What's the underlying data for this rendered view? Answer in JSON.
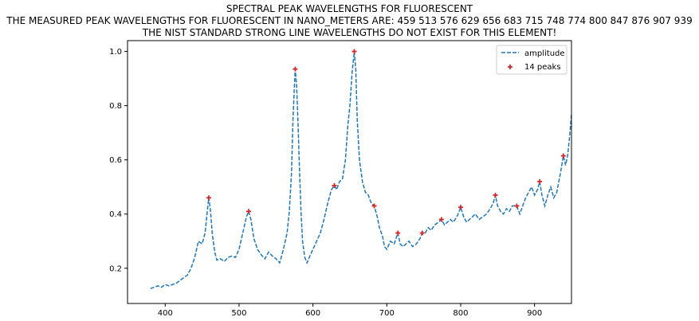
{
  "title_lines": [
    "SPECTRAL PEAK WAVELENGTHS FOR FLUORESCENT",
    "THE MEASURED PEAK WAVELENGTHS FOR FLUORESCENT IN NANO_METERS ARE: 459 513 576 629 656 683 715 748 774 800 847 876 907 939",
    "THE NIST STANDARD STRONG LINE WAVELENGTHS DO NOT EXIST FOR THIS ELEMENT!"
  ],
  "chart_data": {
    "type": "line",
    "title": "SPECTRAL PEAK WAVELENGTHS FOR FLUORESCENT",
    "xlabel": "",
    "ylabel": "",
    "xlim": [
      349,
      950
    ],
    "ylim": [
      0.07,
      1.04
    ],
    "xticks": [
      400,
      500,
      600,
      700,
      800,
      900
    ],
    "yticks": [
      0.2,
      0.4,
      0.6,
      0.8,
      1.0
    ],
    "grid": false,
    "legend_position": "top-right",
    "series": [
      {
        "name": "amplitude",
        "style": "dashed-line",
        "color": "#1f77b4",
        "points": [
          [
            380,
            0.125
          ],
          [
            385,
            0.13
          ],
          [
            390,
            0.135
          ],
          [
            395,
            0.13
          ],
          [
            400,
            0.14
          ],
          [
            405,
            0.135
          ],
          [
            410,
            0.14
          ],
          [
            415,
            0.145
          ],
          [
            420,
            0.155
          ],
          [
            425,
            0.165
          ],
          [
            430,
            0.175
          ],
          [
            435,
            0.2
          ],
          [
            440,
            0.24
          ],
          [
            445,
            0.3
          ],
          [
            450,
            0.29
          ],
          [
            454,
            0.33
          ],
          [
            457,
            0.41
          ],
          [
            459,
            0.46
          ],
          [
            461,
            0.42
          ],
          [
            464,
            0.32
          ],
          [
            467,
            0.26
          ],
          [
            470,
            0.23
          ],
          [
            475,
            0.235
          ],
          [
            480,
            0.225
          ],
          [
            485,
            0.24
          ],
          [
            490,
            0.245
          ],
          [
            495,
            0.24
          ],
          [
            500,
            0.27
          ],
          [
            505,
            0.33
          ],
          [
            510,
            0.39
          ],
          [
            513,
            0.41
          ],
          [
            516,
            0.38
          ],
          [
            520,
            0.31
          ],
          [
            525,
            0.27
          ],
          [
            530,
            0.25
          ],
          [
            535,
            0.235
          ],
          [
            540,
            0.26
          ],
          [
            545,
            0.245
          ],
          [
            550,
            0.235
          ],
          [
            555,
            0.22
          ],
          [
            560,
            0.27
          ],
          [
            565,
            0.33
          ],
          [
            568,
            0.41
          ],
          [
            571,
            0.55
          ],
          [
            573,
            0.75
          ],
          [
            575,
            0.88
          ],
          [
            576,
            0.935
          ],
          [
            578,
            0.87
          ],
          [
            580,
            0.72
          ],
          [
            582,
            0.55
          ],
          [
            584,
            0.4
          ],
          [
            586,
            0.3
          ],
          [
            589,
            0.24
          ],
          [
            592,
            0.22
          ],
          [
            595,
            0.24
          ],
          [
            600,
            0.27
          ],
          [
            605,
            0.3
          ],
          [
            610,
            0.33
          ],
          [
            615,
            0.38
          ],
          [
            620,
            0.44
          ],
          [
            625,
            0.49
          ],
          [
            629,
            0.505
          ],
          [
            632,
            0.49
          ],
          [
            636,
            0.52
          ],
          [
            640,
            0.53
          ],
          [
            644,
            0.6
          ],
          [
            647,
            0.72
          ],
          [
            650,
            0.8
          ],
          [
            653,
            0.92
          ],
          [
            656,
            1.0
          ],
          [
            658,
            0.93
          ],
          [
            660,
            0.75
          ],
          [
            663,
            0.6
          ],
          [
            667,
            0.52
          ],
          [
            671,
            0.48
          ],
          [
            675,
            0.47
          ],
          [
            679,
            0.44
          ],
          [
            683,
            0.43
          ],
          [
            687,
            0.39
          ],
          [
            690,
            0.35
          ],
          [
            694,
            0.32
          ],
          [
            697,
            0.28
          ],
          [
            700,
            0.27
          ],
          [
            705,
            0.3
          ],
          [
            710,
            0.29
          ],
          [
            715,
            0.33
          ],
          [
            718,
            0.29
          ],
          [
            722,
            0.28
          ],
          [
            726,
            0.29
          ],
          [
            730,
            0.3
          ],
          [
            735,
            0.28
          ],
          [
            740,
            0.29
          ],
          [
            745,
            0.31
          ],
          [
            748,
            0.33
          ],
          [
            752,
            0.33
          ],
          [
            756,
            0.35
          ],
          [
            760,
            0.34
          ],
          [
            765,
            0.36
          ],
          [
            770,
            0.37
          ],
          [
            774,
            0.38
          ],
          [
            778,
            0.36
          ],
          [
            782,
            0.37
          ],
          [
            786,
            0.38
          ],
          [
            790,
            0.37
          ],
          [
            795,
            0.39
          ],
          [
            800,
            0.425
          ],
          [
            804,
            0.39
          ],
          [
            808,
            0.37
          ],
          [
            812,
            0.38
          ],
          [
            816,
            0.39
          ],
          [
            820,
            0.4
          ],
          [
            825,
            0.38
          ],
          [
            830,
            0.39
          ],
          [
            835,
            0.4
          ],
          [
            840,
            0.42
          ],
          [
            844,
            0.44
          ],
          [
            847,
            0.47
          ],
          [
            850,
            0.43
          ],
          [
            854,
            0.41
          ],
          [
            858,
            0.4
          ],
          [
            862,
            0.42
          ],
          [
            866,
            0.41
          ],
          [
            870,
            0.43
          ],
          [
            876,
            0.43
          ],
          [
            880,
            0.4
          ],
          [
            884,
            0.43
          ],
          [
            888,
            0.46
          ],
          [
            892,
            0.48
          ],
          [
            896,
            0.5
          ],
          [
            900,
            0.47
          ],
          [
            904,
            0.49
          ],
          [
            907,
            0.52
          ],
          [
            910,
            0.47
          ],
          [
            914,
            0.43
          ],
          [
            918,
            0.47
          ],
          [
            922,
            0.5
          ],
          [
            926,
            0.46
          ],
          [
            930,
            0.48
          ],
          [
            935,
            0.55
          ],
          [
            939,
            0.615
          ],
          [
            942,
            0.58
          ],
          [
            945,
            0.62
          ],
          [
            948,
            0.7
          ],
          [
            950,
            0.77
          ]
        ]
      },
      {
        "name": "14 peaks",
        "style": "markers",
        "color": "#d62728",
        "x": [
          459,
          513,
          576,
          629,
          656,
          683,
          715,
          748,
          774,
          800,
          847,
          876,
          907,
          939
        ],
        "y": [
          0.46,
          0.41,
          0.935,
          0.505,
          1.0,
          0.43,
          0.33,
          0.33,
          0.38,
          0.425,
          0.47,
          0.43,
          0.52,
          0.615
        ]
      }
    ]
  }
}
